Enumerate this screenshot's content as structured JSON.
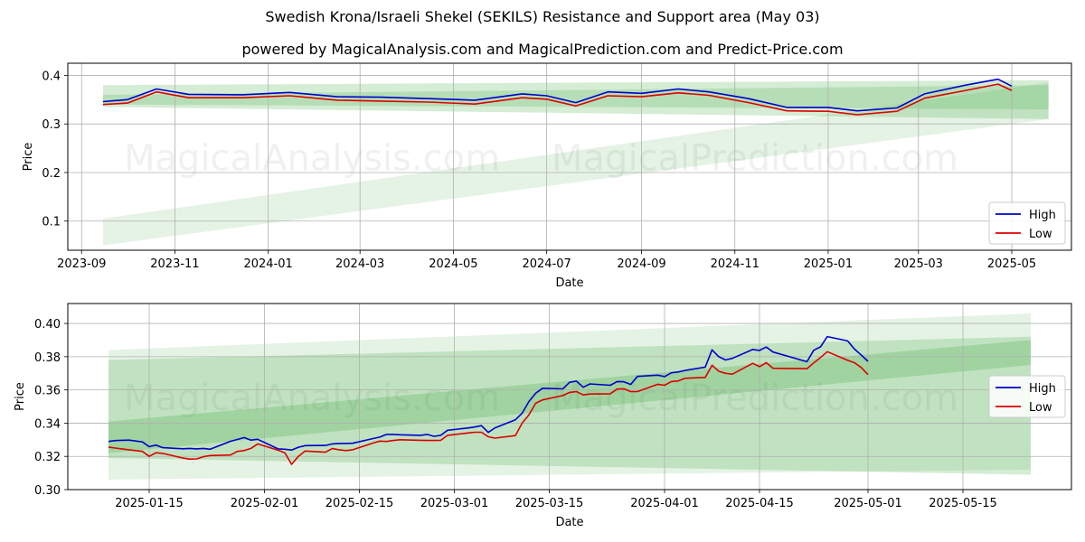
{
  "title": "Swedish Krona/Israeli Shekel (SEKILS) Resistance and Support area (May 03)",
  "subtitle": "powered by MagicalAnalysis.com and MagicalPrediction.com and Predict-Price.com",
  "watermarks": [
    "MagicalAnalysis.com",
    "MagicalPrediction.com"
  ],
  "colors": {
    "high": "#0000cc",
    "low": "#dd0000",
    "band": "#2ca02c",
    "grid": "#b0b0b0"
  },
  "chart_data": [
    {
      "type": "line",
      "xlabel": "Date",
      "ylabel": "Price",
      "xlim": [
        "2023-08-23",
        "2025-06-09"
      ],
      "ylim": [
        0.04,
        0.425
      ],
      "xticks": [
        {
          "date": "2023-09-01",
          "label": "2023-09"
        },
        {
          "date": "2023-11-01",
          "label": "2023-11"
        },
        {
          "date": "2024-01-01",
          "label": "2024-01"
        },
        {
          "date": "2024-03-01",
          "label": "2024-03"
        },
        {
          "date": "2024-05-01",
          "label": "2024-05"
        },
        {
          "date": "2024-07-01",
          "label": "2024-07"
        },
        {
          "date": "2024-09-01",
          "label": "2024-09"
        },
        {
          "date": "2024-11-01",
          "label": "2024-11"
        },
        {
          "date": "2025-01-01",
          "label": "2025-01"
        },
        {
          "date": "2025-03-01",
          "label": "2025-03"
        },
        {
          "date": "2025-05-01",
          "label": "2025-05"
        }
      ],
      "yticks": [
        0.1,
        0.2,
        0.3,
        0.4
      ],
      "grid": true,
      "legend": "lower right",
      "series": [
        {
          "name": "High",
          "x": [
            "2023-09-15",
            "2023-10-01",
            "2023-10-20",
            "2023-11-10",
            "2023-12-15",
            "2024-01-15",
            "2024-02-15",
            "2024-03-15",
            "2024-04-15",
            "2024-05-15",
            "2024-06-15",
            "2024-07-01",
            "2024-07-20",
            "2024-08-10",
            "2024-09-01",
            "2024-09-25",
            "2024-10-15",
            "2024-11-10",
            "2024-12-05",
            "2025-01-01",
            "2025-01-20",
            "2025-02-15",
            "2025-03-05",
            "2025-04-01",
            "2025-04-22",
            "2025-05-01"
          ],
          "values": [
            0.346,
            0.35,
            0.372,
            0.361,
            0.36,
            0.365,
            0.356,
            0.355,
            0.352,
            0.349,
            0.362,
            0.358,
            0.344,
            0.366,
            0.363,
            0.372,
            0.366,
            0.352,
            0.334,
            0.334,
            0.327,
            0.333,
            0.362,
            0.38,
            0.392,
            0.378
          ]
        },
        {
          "name": "Low",
          "x": [
            "2023-09-15",
            "2023-10-01",
            "2023-10-20",
            "2023-11-10",
            "2023-12-15",
            "2024-01-15",
            "2024-02-15",
            "2024-03-15",
            "2024-04-15",
            "2024-05-15",
            "2024-06-15",
            "2024-07-01",
            "2024-07-20",
            "2024-08-10",
            "2024-09-01",
            "2024-09-25",
            "2024-10-15",
            "2024-11-10",
            "2024-12-05",
            "2025-01-01",
            "2025-01-20",
            "2025-02-15",
            "2025-03-05",
            "2025-04-01",
            "2025-04-22",
            "2025-05-01"
          ],
          "values": [
            0.34,
            0.343,
            0.366,
            0.354,
            0.354,
            0.358,
            0.349,
            0.347,
            0.345,
            0.341,
            0.354,
            0.351,
            0.337,
            0.358,
            0.356,
            0.364,
            0.359,
            0.344,
            0.327,
            0.326,
            0.319,
            0.326,
            0.353,
            0.369,
            0.382,
            0.369
          ]
        }
      ],
      "bands": [
        {
          "x": [
            "2023-09-15",
            "2025-05-25"
          ],
          "lower": [
            0.05,
            0.31
          ],
          "upper": [
            0.105,
            0.385
          ],
          "opacity": 0.12
        },
        {
          "x": [
            "2023-09-15",
            "2025-05-25"
          ],
          "lower": [
            0.335,
            0.31
          ],
          "upper": [
            0.38,
            0.39
          ],
          "opacity": 0.2
        },
        {
          "x": [
            "2023-09-15",
            "2025-05-25"
          ],
          "lower": [
            0.34,
            0.33
          ],
          "upper": [
            0.36,
            0.38
          ],
          "opacity": 0.18
        }
      ]
    },
    {
      "type": "line",
      "xlabel": "Date",
      "ylabel": "Price",
      "xlim": [
        "2025-01-03",
        "2025-05-31"
      ],
      "ylim": [
        0.3,
        0.412
      ],
      "xticks": [
        {
          "date": "2025-01-15",
          "label": "2025-01-15"
        },
        {
          "date": "2025-02-01",
          "label": "2025-02-01"
        },
        {
          "date": "2025-02-15",
          "label": "2025-02-15"
        },
        {
          "date": "2025-03-01",
          "label": "2025-03-01"
        },
        {
          "date": "2025-03-15",
          "label": "2025-03-15"
        },
        {
          "date": "2025-04-01",
          "label": "2025-04-01"
        },
        {
          "date": "2025-04-15",
          "label": "2025-04-15"
        },
        {
          "date": "2025-05-01",
          "label": "2025-05-01"
        },
        {
          "date": "2025-05-15",
          "label": "2025-05-15"
        }
      ],
      "yticks": [
        0.3,
        0.32,
        0.34,
        0.36,
        0.38,
        0.4
      ],
      "grid": true,
      "legend": "center right",
      "series": [
        {
          "name": "High",
          "x": [
            "2025-01-09",
            "2025-01-10",
            "2025-01-12",
            "2025-01-14",
            "2025-01-15",
            "2025-01-16",
            "2025-01-17",
            "2025-01-20",
            "2025-01-21",
            "2025-01-22",
            "2025-01-23",
            "2025-01-24",
            "2025-01-27",
            "2025-01-28",
            "2025-01-29",
            "2025-01-30",
            "2025-01-31",
            "2025-02-03",
            "2025-02-04",
            "2025-02-05",
            "2025-02-06",
            "2025-02-07",
            "2025-02-10",
            "2025-02-11",
            "2025-02-12",
            "2025-02-13",
            "2025-02-14",
            "2025-02-17",
            "2025-02-18",
            "2025-02-19",
            "2025-02-20",
            "2025-02-21",
            "2025-02-24",
            "2025-02-25",
            "2025-02-26",
            "2025-02-27",
            "2025-02-28",
            "2025-03-03",
            "2025-03-04",
            "2025-03-05",
            "2025-03-06",
            "2025-03-07",
            "2025-03-10",
            "2025-03-11",
            "2025-03-12",
            "2025-03-13",
            "2025-03-14",
            "2025-03-17",
            "2025-03-18",
            "2025-03-19",
            "2025-03-20",
            "2025-03-21",
            "2025-03-24",
            "2025-03-25",
            "2025-03-26",
            "2025-03-27",
            "2025-03-28",
            "2025-03-31",
            "2025-04-01",
            "2025-04-02",
            "2025-04-03",
            "2025-04-04",
            "2025-04-07",
            "2025-04-08",
            "2025-04-09",
            "2025-04-10",
            "2025-04-11",
            "2025-04-14",
            "2025-04-15",
            "2025-04-16",
            "2025-04-17",
            "2025-04-22",
            "2025-04-23",
            "2025-04-24",
            "2025-04-25",
            "2025-04-28",
            "2025-04-29",
            "2025-04-30",
            "2025-05-01"
          ],
          "values": [
            0.329,
            0.3295,
            0.3298,
            0.3287,
            0.3258,
            0.3268,
            0.3252,
            0.3246,
            0.3248,
            0.3245,
            0.3248,
            0.3243,
            0.3291,
            0.3302,
            0.3313,
            0.3298,
            0.3303,
            0.3245,
            0.3243,
            0.3238,
            0.3255,
            0.3265,
            0.3266,
            0.3275,
            0.3278,
            0.3278,
            0.3279,
            0.3307,
            0.3316,
            0.3332,
            0.3332,
            0.333,
            0.3327,
            0.3332,
            0.3321,
            0.3327,
            0.3357,
            0.3371,
            0.3377,
            0.3385,
            0.3344,
            0.3372,
            0.342,
            0.346,
            0.353,
            0.358,
            0.361,
            0.3606,
            0.3646,
            0.3653,
            0.3616,
            0.3636,
            0.3628,
            0.365,
            0.3649,
            0.3633,
            0.3681,
            0.3689,
            0.368,
            0.3703,
            0.3708,
            0.3717,
            0.3737,
            0.3841,
            0.38,
            0.378,
            0.379,
            0.3843,
            0.3838,
            0.3858,
            0.3828,
            0.377,
            0.3839,
            0.3859,
            0.3921,
            0.3895,
            0.3846,
            0.381,
            0.3772
          ]
        },
        {
          "name": "Low",
          "x": [
            "2025-01-09",
            "2025-01-10",
            "2025-01-12",
            "2025-01-14",
            "2025-01-15",
            "2025-01-16",
            "2025-01-17",
            "2025-01-20",
            "2025-01-21",
            "2025-01-22",
            "2025-01-23",
            "2025-01-24",
            "2025-01-27",
            "2025-01-28",
            "2025-01-29",
            "2025-01-30",
            "2025-01-31",
            "2025-02-03",
            "2025-02-04",
            "2025-02-05",
            "2025-02-06",
            "2025-02-07",
            "2025-02-10",
            "2025-02-11",
            "2025-02-12",
            "2025-02-13",
            "2025-02-14",
            "2025-02-17",
            "2025-02-18",
            "2025-02-19",
            "2025-02-20",
            "2025-02-21",
            "2025-02-24",
            "2025-02-25",
            "2025-02-26",
            "2025-02-27",
            "2025-02-28",
            "2025-03-03",
            "2025-03-04",
            "2025-03-05",
            "2025-03-06",
            "2025-03-07",
            "2025-03-10",
            "2025-03-11",
            "2025-03-12",
            "2025-03-13",
            "2025-03-14",
            "2025-03-17",
            "2025-03-18",
            "2025-03-19",
            "2025-03-20",
            "2025-03-21",
            "2025-03-24",
            "2025-03-25",
            "2025-03-26",
            "2025-03-27",
            "2025-03-28",
            "2025-03-31",
            "2025-04-01",
            "2025-04-02",
            "2025-04-03",
            "2025-04-04",
            "2025-04-07",
            "2025-04-08",
            "2025-04-09",
            "2025-04-10",
            "2025-04-11",
            "2025-04-14",
            "2025-04-15",
            "2025-04-16",
            "2025-04-17",
            "2025-04-22",
            "2025-04-23",
            "2025-04-24",
            "2025-04-25",
            "2025-04-28",
            "2025-04-29",
            "2025-04-30",
            "2025-05-01"
          ],
          "values": [
            0.3256,
            0.325,
            0.324,
            0.323,
            0.32,
            0.3222,
            0.3218,
            0.319,
            0.3183,
            0.3185,
            0.3198,
            0.3205,
            0.3208,
            0.323,
            0.3235,
            0.3248,
            0.3275,
            0.3237,
            0.3222,
            0.3152,
            0.32,
            0.3232,
            0.3225,
            0.3247,
            0.324,
            0.3235,
            0.324,
            0.328,
            0.3292,
            0.329,
            0.3296,
            0.33,
            0.3297,
            0.3296,
            0.3296,
            0.3297,
            0.3327,
            0.3341,
            0.3345,
            0.3345,
            0.3318,
            0.331,
            0.3325,
            0.34,
            0.345,
            0.352,
            0.354,
            0.3566,
            0.3585,
            0.359,
            0.357,
            0.3575,
            0.3577,
            0.3605,
            0.3607,
            0.359,
            0.359,
            0.3634,
            0.3628,
            0.365,
            0.3654,
            0.367,
            0.3675,
            0.3748,
            0.3712,
            0.37,
            0.3695,
            0.376,
            0.374,
            0.3764,
            0.373,
            0.3728,
            0.3763,
            0.3795,
            0.383,
            0.3778,
            0.3764,
            0.3735,
            0.3692
          ]
        }
      ],
      "bands": [
        {
          "x": [
            "2025-01-09",
            "2025-05-25"
          ],
          "lower": [
            0.306,
            0.312
          ],
          "upper": [
            0.384,
            0.406
          ],
          "opacity": 0.12
        },
        {
          "x": [
            "2025-01-09",
            "2025-05-25"
          ],
          "lower": [
            0.319,
            0.309
          ],
          "upper": [
            0.378,
            0.392
          ],
          "opacity": 0.2
        },
        {
          "x": [
            "2025-01-09",
            "2025-05-25"
          ],
          "lower": [
            0.322,
            0.375
          ],
          "upper": [
            0.341,
            0.39
          ],
          "opacity": 0.22
        }
      ]
    }
  ]
}
